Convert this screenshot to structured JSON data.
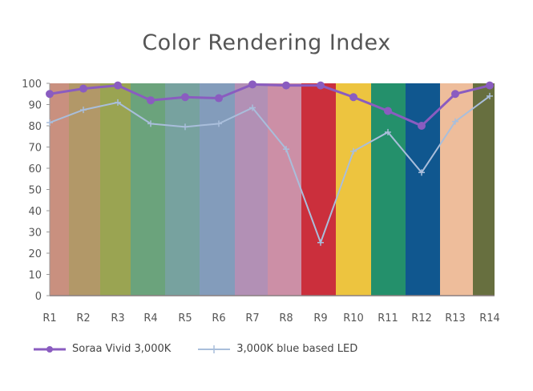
{
  "chart_data": {
    "type": "line",
    "title": "Color Rendering Index",
    "xlabel": "",
    "ylabel": "",
    "ylim": [
      0,
      100
    ],
    "yticks": [
      0,
      10,
      20,
      30,
      40,
      50,
      60,
      70,
      80,
      90,
      100
    ],
    "categories": [
      "R1",
      "R2",
      "R3",
      "R4",
      "R5",
      "R6",
      "R7",
      "R8",
      "R9",
      "R10",
      "R11",
      "R12",
      "R13",
      "R14"
    ],
    "series": [
      {
        "name": "Soraa Vivid 3,000K",
        "color": "#8a5cc0",
        "marker": "circle",
        "values": [
          95,
          97.5,
          99,
          92,
          93.5,
          93,
          99.5,
          99,
          99,
          93.5,
          87,
          80,
          95,
          99
        ]
      },
      {
        "name": "3,000K blue based LED",
        "color": "#a9bedb",
        "marker": "plus",
        "values": [
          81.5,
          87.5,
          91,
          81,
          79.5,
          81,
          88.5,
          69,
          25,
          68,
          77,
          58,
          82,
          94
        ]
      }
    ],
    "background_bands": [
      "#c9907f",
      "#b29868",
      "#9aa452",
      "#6ba37c",
      "#77a29f",
      "#839cbb",
      "#b290b5",
      "#cc8fa6",
      "#cb2f3c",
      "#edc43f",
      "#24906b",
      "#10578f",
      "#eebd9b",
      "#676f3f"
    ],
    "grid": false,
    "legend_position": "bottom-left"
  },
  "legend": {
    "items": [
      "Soraa Vivid 3,000K",
      "3,000K blue based LED"
    ]
  }
}
